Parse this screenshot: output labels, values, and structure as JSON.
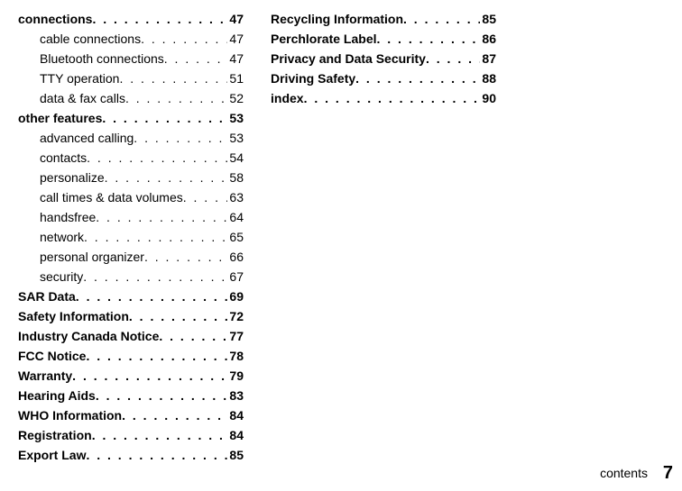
{
  "footer_label": "contents",
  "page_number": "7",
  "columns": [
    [
      {
        "label": "connections",
        "page": "47",
        "bold": true,
        "sub": false
      },
      {
        "label": "cable connections",
        "page": "47",
        "bold": false,
        "sub": true
      },
      {
        "label": "Bluetooth connections",
        "page": "47",
        "bold": false,
        "sub": true
      },
      {
        "label": "TTY operation",
        "page": "51",
        "bold": false,
        "sub": true
      },
      {
        "label": "data & fax calls",
        "page": "52",
        "bold": false,
        "sub": true
      },
      {
        "label": "other features",
        "page": "53",
        "bold": true,
        "sub": false
      },
      {
        "label": "advanced calling",
        "page": "53",
        "bold": false,
        "sub": true
      },
      {
        "label": "contacts",
        "page": "54",
        "bold": false,
        "sub": true
      },
      {
        "label": "personalize",
        "page": "58",
        "bold": false,
        "sub": true
      },
      {
        "label": "call times & data volumes",
        "page": "63",
        "bold": false,
        "sub": true
      },
      {
        "label": "handsfree",
        "page": "64",
        "bold": false,
        "sub": true
      },
      {
        "label": "network",
        "page": "65",
        "bold": false,
        "sub": true
      },
      {
        "label": "personal organizer",
        "page": "66",
        "bold": false,
        "sub": true
      },
      {
        "label": "security",
        "page": "67",
        "bold": false,
        "sub": true
      },
      {
        "label": "SAR Data",
        "page": "69",
        "bold": true,
        "sub": false
      },
      {
        "label": "Safety Information",
        "page": "72",
        "bold": true,
        "sub": false
      },
      {
        "label": "Industry Canada Notice",
        "page": "77",
        "bold": true,
        "sub": false
      },
      {
        "label": "FCC Notice",
        "page": "78",
        "bold": true,
        "sub": false
      },
      {
        "label": "Warranty",
        "page": "79",
        "bold": true,
        "sub": false
      },
      {
        "label": "Hearing Aids",
        "page": "83",
        "bold": true,
        "sub": false
      },
      {
        "label": "WHO Information",
        "page": "84",
        "bold": true,
        "sub": false
      },
      {
        "label": "Registration",
        "page": "84",
        "bold": true,
        "sub": false
      },
      {
        "label": "Export Law",
        "page": "85",
        "bold": true,
        "sub": false
      }
    ],
    [
      {
        "label": "Recycling Information",
        "page": "85",
        "bold": true,
        "sub": false
      },
      {
        "label": "Perchlorate Label",
        "page": "86",
        "bold": true,
        "sub": false
      },
      {
        "label": "Privacy and Data Security",
        "page": "87",
        "bold": true,
        "sub": false
      },
      {
        "label": "Driving Safety",
        "page": "88",
        "bold": true,
        "sub": false
      },
      {
        "label": "index",
        "page": "90",
        "bold": true,
        "sub": false
      }
    ]
  ]
}
